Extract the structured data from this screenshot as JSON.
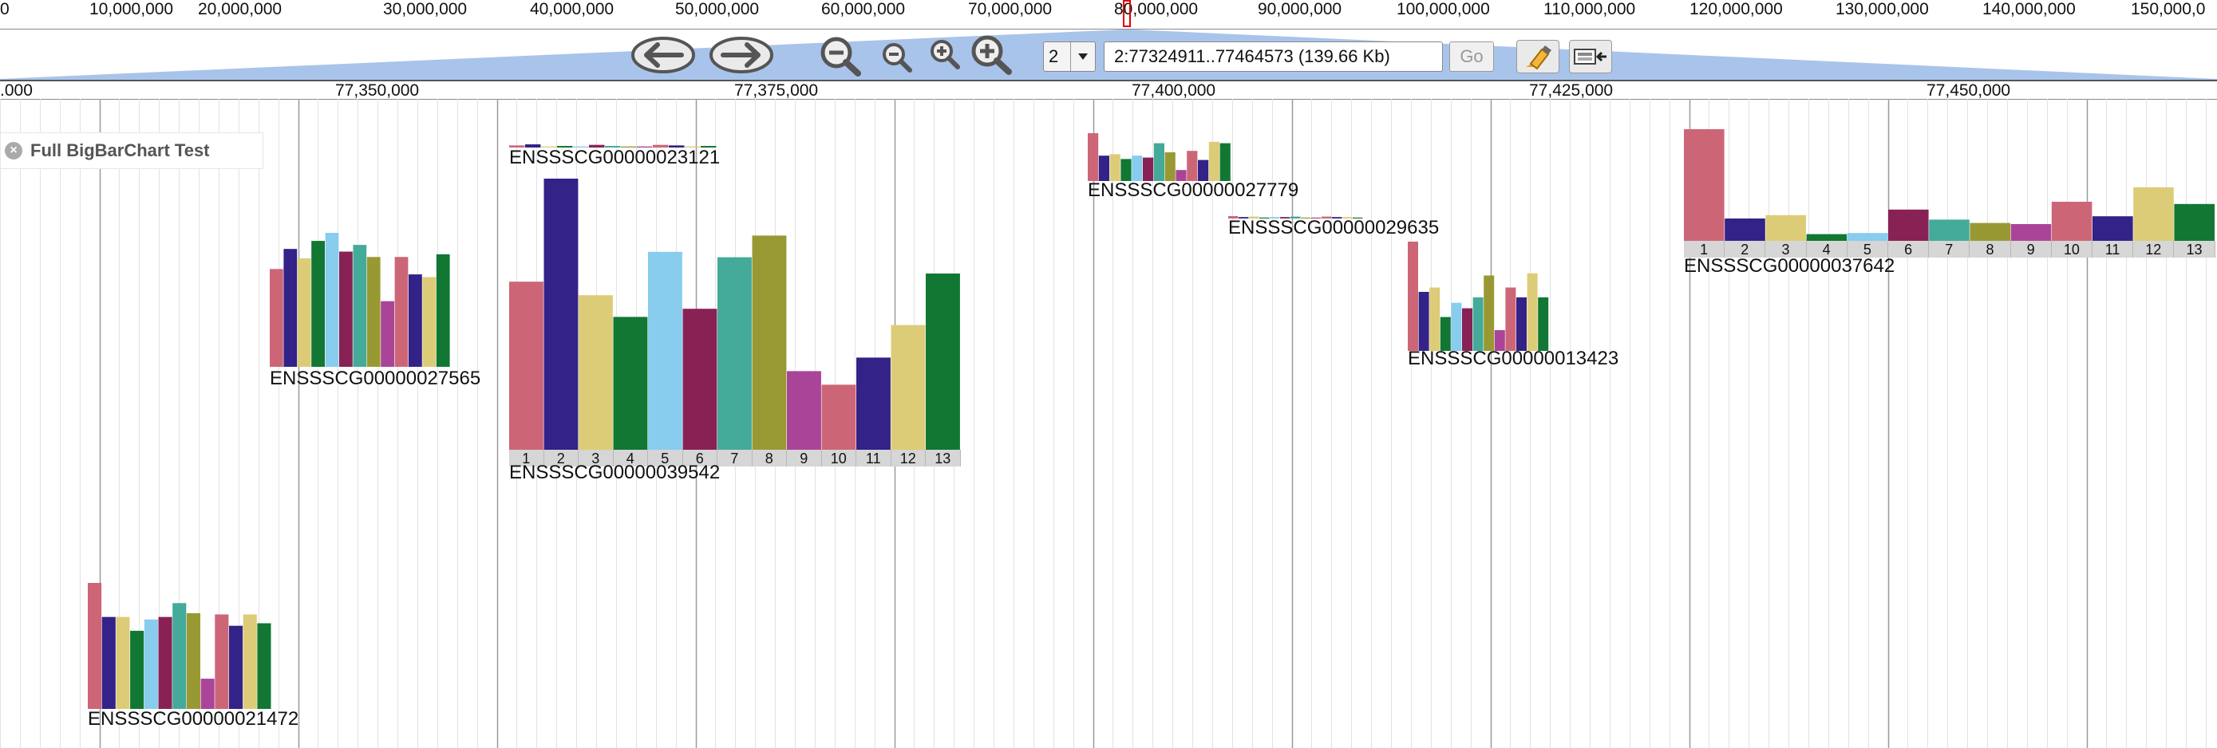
{
  "overview": {
    "ticks": [
      "0",
      "10,000,000",
      "20,000,000",
      "30,000,000",
      "40,000,000",
      "50,000,000",
      "60,000,000",
      "70,000,000",
      "80,000,000",
      "90,000,000",
      "100,000,000",
      "110,000,000",
      "120,000,000",
      "130,000,000",
      "140,000,000",
      "150,000,0"
    ]
  },
  "navigation": {
    "chromosome": "2",
    "location": "2:77324911..77464573 (139.66 Kb)",
    "go_label": "Go"
  },
  "ruler": {
    "ticks": [
      ".000",
      "77,350,000",
      "77,375,000",
      "77,400,000",
      "77,425,000",
      "77,450,000"
    ]
  },
  "track": {
    "name": "Full BigBarChart Test",
    "close_icon": "close-icon"
  },
  "colors": [
    "#cc6677",
    "#332288",
    "#ddcc77",
    "#117733",
    "#88ccee",
    "#882255",
    "#44aa99",
    "#999933",
    "#aa4499",
    "#cc6677",
    "#332288",
    "#ddcc77",
    "#117733"
  ],
  "features": [
    {
      "id": "ENSSSCG00000027565",
      "values": [
        73,
        88,
        81,
        94,
        100,
        86,
        91,
        82,
        49,
        82,
        69,
        67,
        84
      ],
      "has_xlabels": false
    },
    {
      "id": "ENSSSCG00000023121",
      "values": [
        0.4,
        0.6,
        0.2,
        0.3,
        0.2,
        0.5,
        0.3,
        0.2,
        0.2,
        0.5,
        0.4,
        0.2,
        0.3
      ],
      "has_xlabels": false
    },
    {
      "id": "ENSSSCG00000039542",
      "values": [
        62,
        100,
        57,
        49,
        73,
        52,
        71,
        79,
        29,
        24,
        34,
        46,
        65
      ],
      "has_xlabels": true,
      "xlabels": [
        "1",
        "2",
        "3",
        "4",
        "5",
        "6",
        "7",
        "8",
        "9",
        "10",
        "11",
        "12",
        "13"
      ]
    },
    {
      "id": "ENSSSCG00000027779",
      "values": [
        100,
        53,
        56,
        46,
        53,
        49,
        79,
        60,
        23,
        63,
        44,
        82,
        79
      ],
      "has_xlabels": false
    },
    {
      "id": "ENSSSCG00000029635",
      "values": [
        0.5,
        0.3,
        0.4,
        0.2,
        0.3,
        0.3,
        0.4,
        0.2,
        0.2,
        0.4,
        0.3,
        0.3,
        0.2
      ],
      "has_xlabels": false
    },
    {
      "id": "ENSSSCG00000013423",
      "values": [
        100,
        54,
        58,
        31,
        44,
        39,
        49,
        69,
        19,
        58,
        49,
        71,
        49
      ],
      "has_xlabels": false
    },
    {
      "id": "ENSSSCG00000037642",
      "values": [
        100,
        20,
        23,
        6,
        7,
        28,
        19,
        16,
        15,
        35,
        22,
        48,
        33
      ],
      "has_xlabels": true,
      "xlabels": [
        "1",
        "2",
        "3",
        "4",
        "5",
        "6",
        "7",
        "8",
        "9",
        "10",
        "11",
        "12",
        "13"
      ]
    },
    {
      "id": "ENSSSCG00000021472",
      "values": [
        100,
        73,
        73,
        62,
        71,
        73,
        84,
        76,
        24,
        75,
        66,
        75,
        68
      ],
      "has_xlabels": false
    }
  ]
}
